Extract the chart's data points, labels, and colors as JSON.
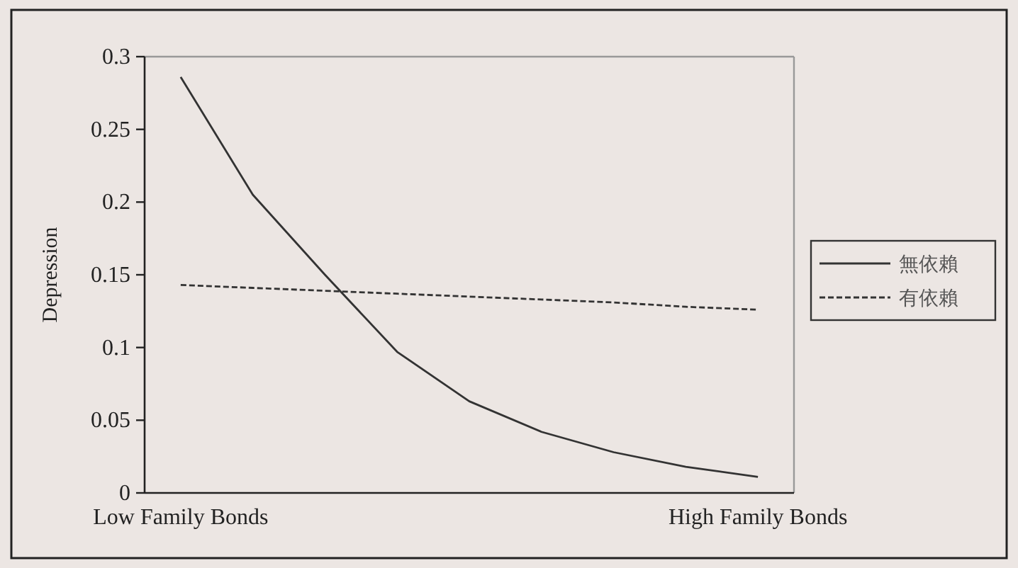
{
  "chart_data": {
    "type": "line",
    "ylabel": "Depression",
    "categories": [
      "Low Family Bonds",
      null,
      null,
      null,
      null,
      null,
      null,
      null,
      "High Family Bonds"
    ],
    "ylim": [
      0,
      0.3
    ],
    "yticks": [
      0,
      0.05,
      0.1,
      0.15,
      0.2,
      0.25,
      0.3
    ],
    "legend": "right",
    "series": [
      {
        "name": "無依賴",
        "color": "#333333",
        "line_style": "solid",
        "values": [
          0.286,
          0.205,
          0.15,
          0.097,
          0.063,
          0.042,
          0.028,
          0.018,
          0.011
        ]
      },
      {
        "name": "有依賴",
        "color": "#333333",
        "line_style": "dashed",
        "values": [
          0.143,
          0.141,
          0.139,
          0.137,
          0.135,
          0.133,
          0.131,
          0.128,
          0.126
        ]
      }
    ]
  }
}
